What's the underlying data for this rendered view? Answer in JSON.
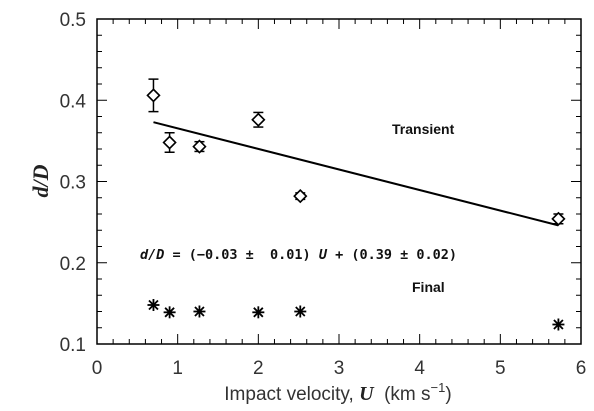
{
  "chart_data": {
    "type": "scatter",
    "xlabel": {
      "prefix": "Impact velocity, ",
      "variable": "U",
      "units_open": "  (km s",
      "units_exp": "−1",
      "units_close": ")"
    },
    "ylabel": "d/D",
    "xlim": [
      0,
      6
    ],
    "ylim": [
      0.1,
      0.5
    ],
    "xticks": [
      0,
      1,
      2,
      3,
      4,
      5,
      6
    ],
    "yticks": [
      0.1,
      0.2,
      0.3,
      0.4,
      0.5
    ],
    "xtick_labels": [
      "0",
      "1",
      "2",
      "3",
      "4",
      "5",
      "6"
    ],
    "ytick_labels": [
      "0.1",
      "0.2",
      "0.3",
      "0.4",
      "0.5"
    ],
    "series": [
      {
        "name": "Transient",
        "marker": "diamond",
        "points": [
          {
            "x": 0.7,
            "y": 0.406,
            "err": 0.02
          },
          {
            "x": 0.9,
            "y": 0.348,
            "err": 0.012
          },
          {
            "x": 1.27,
            "y": 0.343,
            "err": 0.006
          },
          {
            "x": 2.0,
            "y": 0.376,
            "err": 0.009
          },
          {
            "x": 2.52,
            "y": 0.282,
            "err": 0.004
          },
          {
            "x": 5.72,
            "y": 0.254,
            "err": 0.006
          }
        ]
      },
      {
        "name": "Final",
        "marker": "star",
        "points": [
          {
            "x": 0.7,
            "y": 0.148
          },
          {
            "x": 0.9,
            "y": 0.139
          },
          {
            "x": 1.27,
            "y": 0.14
          },
          {
            "x": 2.0,
            "y": 0.139
          },
          {
            "x": 2.52,
            "y": 0.14
          },
          {
            "x": 5.72,
            "y": 0.124
          }
        ]
      }
    ],
    "fit_line": {
      "x": [
        0.7,
        5.72
      ],
      "y": [
        0.373,
        0.246
      ]
    },
    "equation": {
      "lhs": "d/D",
      "mid1": " = (−0.03 ±  0.01) ",
      "var": "U",
      "mid2": " + (0.39 ± 0.02)"
    },
    "annotations": {
      "transient": "Transient",
      "final": "Final"
    }
  }
}
